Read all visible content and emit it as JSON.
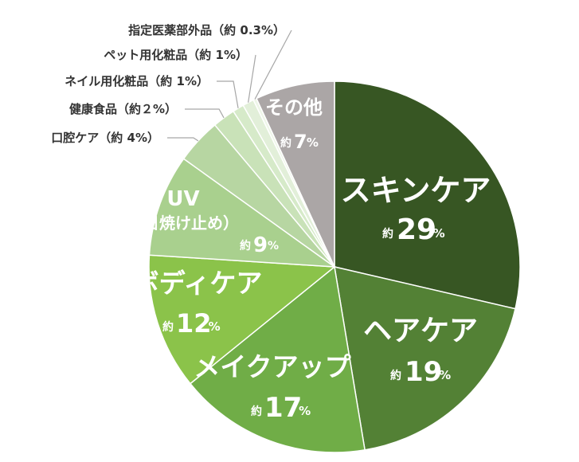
{
  "chart_data": {
    "type": "pie",
    "slices": [
      {
        "name": "スキンケア",
        "approx": "約",
        "num": "29",
        "pct": "%",
        "value": 29,
        "color": "#375623"
      },
      {
        "name": "ヘアケア",
        "approx": "約",
        "num": "19",
        "pct": "%",
        "value": 19,
        "color": "#538135"
      },
      {
        "name": "メイクアップ",
        "approx": "約",
        "num": "17",
        "pct": "%",
        "value": 17,
        "color": "#70ad47"
      },
      {
        "name": "ボディケア",
        "approx": "約",
        "num": "12",
        "pct": "%",
        "value": 12,
        "color": "#8bc34a"
      },
      {
        "name": "UV",
        "name2": "（日焼け止め）",
        "approx": "約",
        "num": "9",
        "pct": "%",
        "value": 9,
        "color": "#a9d08e"
      },
      {
        "name": "口腔ケア（約 4%）",
        "value": 4,
        "color": "#b7d6a2",
        "external": true
      },
      {
        "name": "健康食品（約２%）",
        "value": 2,
        "color": "#c9e2b8",
        "external": true
      },
      {
        "name": "ネイル用化粧品（約 1%）",
        "value": 1,
        "color": "#d6eac9",
        "external": true
      },
      {
        "name": "ペット用化粧品（約 1%）",
        "value": 1,
        "color": "#e2efd9",
        "external": true
      },
      {
        "name": "指定医薬部外品（約 0.3%）",
        "value": 0.3,
        "color": "#eef6e8",
        "external": true
      },
      {
        "name": "その他",
        "approx": "約",
        "num": "7",
        "pct": "%",
        "value": 7,
        "color": "#aba6a6"
      }
    ]
  }
}
